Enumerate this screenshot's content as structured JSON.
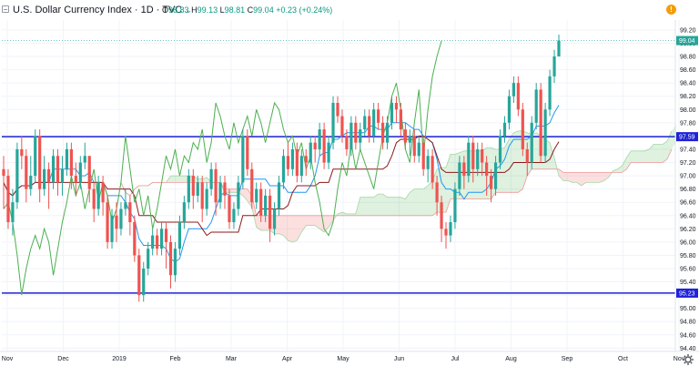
{
  "header": {
    "title": "U.S. Dollar Currency Index · 1D · TVC",
    "chevron": "⌄",
    "open_label": "O",
    "open": "98.83",
    "high_label": "H",
    "high": "99.13",
    "low_label": "L",
    "low": "98.81",
    "close_label": "C",
    "close": "99.04",
    "change": "+0.23 (+0.24%)",
    "alert_symbol": "!"
  },
  "chart_data": {
    "type": "candlestick",
    "y_ticks": [
      "99.20",
      "99.00",
      "98.80",
      "98.60",
      "98.40",
      "98.20",
      "98.00",
      "97.80",
      "97.60",
      "97.40",
      "97.20",
      "97.00",
      "96.80",
      "96.60",
      "96.40",
      "96.20",
      "96.00",
      "95.80",
      "95.60",
      "95.40",
      "95.20",
      "95.00",
      "94.80",
      "94.60",
      "94.40"
    ],
    "x_ticks": [
      "Nov",
      "Dec",
      "2019",
      "Feb",
      "Mar",
      "Apr",
      "May",
      "Jun",
      "Jul",
      "Aug",
      "Sep",
      "Oct",
      "Nov"
    ],
    "ylim": [
      94.35,
      99.35
    ],
    "horizontal_lines": [
      {
        "value": 97.59,
        "label": "97.59",
        "color": "#1f22d6"
      },
      {
        "value": 95.23,
        "label": "95.23",
        "color": "#1f22d6"
      }
    ],
    "last_price": {
      "value": 99.04,
      "label": "99.04",
      "color": "#26a69a"
    },
    "candles": [
      [
        97.1,
        97.0,
        97.3,
        96.5
      ],
      [
        97.0,
        96.3,
        97.1,
        96.2
      ],
      [
        96.3,
        96.6,
        96.8,
        96.1
      ],
      [
        96.6,
        97.4,
        97.5,
        96.5
      ],
      [
        97.4,
        97.3,
        97.6,
        97.1
      ],
      [
        97.3,
        96.8,
        97.4,
        96.6
      ],
      [
        96.8,
        97.0,
        97.3,
        96.7
      ],
      [
        97.0,
        97.6,
        97.7,
        96.9
      ],
      [
        97.6,
        96.8,
        97.7,
        96.6
      ],
      [
        96.8,
        97.1,
        97.3,
        96.7
      ],
      [
        97.1,
        96.9,
        97.2,
        96.5
      ],
      [
        96.9,
        97.3,
        97.4,
        96.8
      ],
      [
        97.3,
        96.9,
        97.4,
        96.7
      ],
      [
        96.9,
        97.1,
        97.3,
        96.7
      ],
      [
        97.1,
        97.4,
        97.5,
        97.0
      ],
      [
        97.4,
        97.0,
        97.5,
        96.8
      ],
      [
        97.0,
        96.9,
        97.2,
        96.7
      ],
      [
        96.9,
        97.2,
        97.3,
        96.8
      ],
      [
        97.2,
        97.3,
        97.5,
        97.1
      ],
      [
        97.3,
        96.8,
        97.3,
        96.6
      ],
      [
        96.8,
        96.5,
        96.9,
        96.3
      ],
      [
        96.5,
        96.9,
        97.0,
        96.4
      ],
      [
        96.9,
        96.6,
        97.0,
        96.4
      ],
      [
        96.6,
        96.0,
        96.7,
        95.9
      ],
      [
        96.0,
        96.4,
        96.5,
        95.9
      ],
      [
        96.4,
        96.2,
        96.6,
        96.0
      ],
      [
        96.2,
        96.5,
        96.6,
        96.1
      ],
      [
        96.5,
        96.6,
        96.8,
        96.4
      ],
      [
        96.6,
        96.3,
        96.7,
        96.1
      ],
      [
        96.3,
        95.8,
        96.4,
        95.7
      ],
      [
        95.8,
        95.2,
        95.9,
        95.1
      ],
      [
        95.2,
        95.6,
        95.7,
        95.1
      ],
      [
        95.6,
        95.9,
        96.0,
        95.5
      ],
      [
        95.9,
        96.1,
        96.2,
        95.8
      ],
      [
        96.1,
        95.9,
        96.2,
        95.8
      ],
      [
        95.9,
        96.2,
        96.3,
        95.8
      ],
      [
        96.2,
        96.0,
        96.3,
        95.6
      ],
      [
        96.0,
        95.5,
        96.1,
        95.3
      ],
      [
        95.5,
        95.9,
        96.0,
        95.4
      ],
      [
        95.9,
        96.3,
        96.4,
        95.8
      ],
      [
        96.3,
        96.6,
        96.7,
        96.2
      ],
      [
        96.6,
        97.0,
        97.1,
        96.5
      ],
      [
        97.0,
        96.7,
        97.1,
        96.5
      ],
      [
        96.7,
        96.9,
        97.0,
        96.6
      ],
      [
        96.9,
        96.5,
        97.0,
        96.3
      ],
      [
        96.5,
        96.8,
        96.9,
        96.4
      ],
      [
        96.8,
        97.1,
        97.2,
        96.7
      ],
      [
        97.1,
        96.6,
        97.2,
        96.4
      ],
      [
        96.6,
        96.9,
        97.0,
        96.5
      ],
      [
        96.9,
        96.7,
        97.0,
        96.5
      ],
      [
        96.7,
        96.3,
        96.8,
        96.2
      ],
      [
        96.3,
        96.5,
        96.6,
        96.2
      ],
      [
        96.5,
        96.9,
        97.0,
        96.4
      ],
      [
        96.9,
        97.6,
        97.7,
        96.8
      ],
      [
        97.6,
        97.1,
        97.7,
        97.0
      ],
      [
        97.1,
        96.6,
        97.2,
        96.5
      ],
      [
        96.6,
        96.8,
        96.9,
        96.5
      ],
      [
        96.8,
        96.4,
        96.9,
        96.3
      ],
      [
        96.4,
        96.7,
        96.8,
        96.3
      ],
      [
        96.7,
        96.2,
        96.8,
        96.0
      ],
      [
        96.2,
        96.5,
        96.6,
        96.1
      ],
      [
        96.5,
        96.9,
        97.0,
        96.4
      ],
      [
        96.9,
        97.3,
        97.4,
        96.8
      ],
      [
        97.3,
        97.1,
        97.5,
        97.0
      ],
      [
        97.1,
        97.4,
        97.5,
        97.0
      ],
      [
        97.4,
        97.0,
        97.5,
        96.9
      ],
      [
        97.0,
        97.3,
        97.4,
        96.9
      ],
      [
        97.3,
        97.2,
        97.4,
        97.0
      ],
      [
        97.2,
        97.5,
        97.6,
        97.1
      ],
      [
        97.5,
        97.4,
        97.6,
        97.2
      ],
      [
        97.4,
        97.7,
        97.8,
        97.3
      ],
      [
        97.7,
        97.2,
        97.8,
        97.1
      ],
      [
        97.2,
        97.5,
        97.6,
        97.1
      ],
      [
        97.5,
        98.1,
        98.2,
        97.4
      ],
      [
        98.1,
        97.9,
        98.2,
        97.8
      ],
      [
        97.9,
        97.6,
        98.0,
        97.5
      ],
      [
        97.6,
        97.4,
        97.7,
        97.3
      ],
      [
        97.4,
        97.8,
        97.9,
        97.3
      ],
      [
        97.8,
        97.5,
        97.9,
        97.4
      ],
      [
        97.5,
        97.7,
        97.8,
        97.4
      ],
      [
        97.7,
        97.9,
        98.0,
        97.6
      ],
      [
        97.9,
        97.6,
        98.0,
        97.5
      ],
      [
        97.6,
        98.0,
        98.1,
        97.5
      ],
      [
        98.0,
        97.8,
        98.1,
        97.7
      ],
      [
        97.8,
        97.5,
        97.9,
        97.4
      ],
      [
        97.5,
        97.8,
        97.9,
        97.4
      ],
      [
        97.8,
        98.1,
        98.2,
        97.7
      ],
      [
        98.1,
        98.0,
        98.2,
        97.8
      ],
      [
        98.0,
        97.7,
        98.1,
        97.6
      ],
      [
        97.7,
        97.5,
        97.8,
        97.4
      ],
      [
        97.5,
        97.6,
        97.7,
        97.3
      ],
      [
        97.6,
        97.3,
        97.7,
        97.2
      ],
      [
        97.3,
        97.5,
        97.6,
        97.2
      ],
      [
        97.5,
        97.1,
        97.6,
        97.0
      ],
      [
        97.1,
        97.3,
        97.4,
        96.9
      ],
      [
        97.3,
        96.9,
        97.4,
        96.8
      ],
      [
        96.9,
        96.6,
        97.0,
        96.4
      ],
      [
        96.6,
        96.2,
        96.7,
        96.0
      ],
      [
        96.2,
        96.1,
        96.3,
        95.9
      ],
      [
        96.1,
        96.3,
        96.4,
        96.0
      ],
      [
        96.3,
        96.8,
        96.9,
        96.2
      ],
      [
        96.8,
        97.2,
        97.3,
        96.7
      ],
      [
        97.2,
        97.0,
        97.3,
        96.8
      ],
      [
        97.0,
        97.5,
        97.6,
        96.9
      ],
      [
        97.5,
        97.1,
        97.6,
        96.9
      ],
      [
        97.1,
        97.4,
        97.5,
        97.0
      ],
      [
        97.4,
        97.2,
        97.5,
        97.0
      ],
      [
        97.2,
        97.0,
        97.3,
        96.7
      ],
      [
        97.0,
        96.8,
        97.1,
        96.6
      ],
      [
        96.8,
        97.2,
        97.3,
        96.7
      ],
      [
        97.2,
        97.6,
        97.7,
        97.1
      ],
      [
        97.6,
        97.8,
        97.9,
        97.5
      ],
      [
        97.8,
        98.2,
        98.3,
        97.7
      ],
      [
        98.2,
        98.4,
        98.5,
        98.1
      ],
      [
        98.4,
        98.0,
        98.5,
        97.9
      ],
      [
        98.0,
        97.4,
        98.1,
        97.3
      ],
      [
        97.4,
        97.2,
        97.5,
        97.0
      ],
      [
        97.2,
        97.8,
        97.9,
        97.1
      ],
      [
        97.8,
        98.3,
        98.4,
        97.7
      ],
      [
        98.3,
        97.3,
        98.4,
        97.2
      ],
      [
        97.3,
        98.0,
        98.1,
        97.2
      ],
      [
        98.0,
        98.5,
        98.6,
        97.9
      ],
      [
        98.5,
        98.8,
        98.9,
        98.4
      ],
      [
        98.8,
        99.04,
        99.13,
        98.81
      ]
    ]
  },
  "footer": {
    "settings_icon": "gear-icon"
  }
}
